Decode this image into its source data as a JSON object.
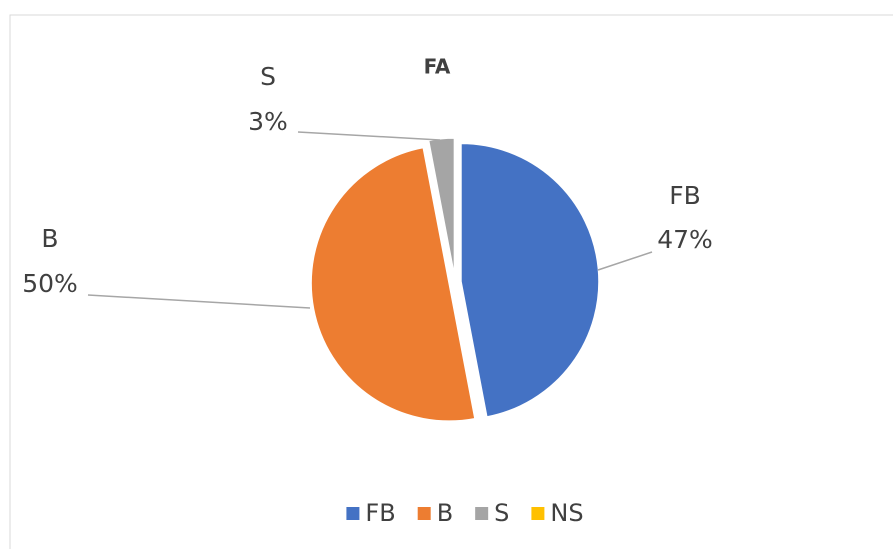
{
  "chart_data": {
    "type": "pie",
    "title": "FA",
    "categories": [
      "FB",
      "B",
      "S",
      "NS"
    ],
    "values": [
      47,
      50,
      3,
      0
    ],
    "value_labels": [
      "47%",
      "50%",
      "3%",
      null
    ],
    "colors": [
      "#4472c4",
      "#ed7d31",
      "#a5a5a5",
      "#ffc000"
    ],
    "legend": "bottom"
  }
}
